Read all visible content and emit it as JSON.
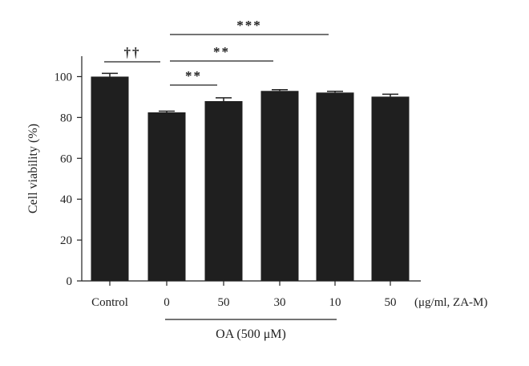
{
  "chart_data": {
    "type": "bar",
    "categories": [
      "Control",
      "0",
      "50",
      "30",
      "10",
      "50"
    ],
    "values": [
      100,
      82.5,
      88,
      93,
      92.2,
      90.2
    ],
    "errors": [
      1.6,
      0.6,
      1.6,
      0.6,
      0.6,
      1.2
    ],
    "ylabel": "Cell viability (%)",
    "xunit_label": "(μg/ml, ZA-M)",
    "group_label": "OA (500 μM)",
    "group_span": [
      1,
      4
    ],
    "ylim": [
      0,
      110
    ],
    "yticks": [
      0,
      20,
      40,
      60,
      80,
      100
    ],
    "bar_color": "#1f1f1f",
    "significance": [
      {
        "from": 0,
        "to": 1,
        "label": "††"
      },
      {
        "from": 1,
        "to": 2,
        "label": "**"
      },
      {
        "from": 1,
        "to": 3,
        "label": "**"
      },
      {
        "from": 1,
        "to": 4,
        "label": "***"
      }
    ]
  }
}
